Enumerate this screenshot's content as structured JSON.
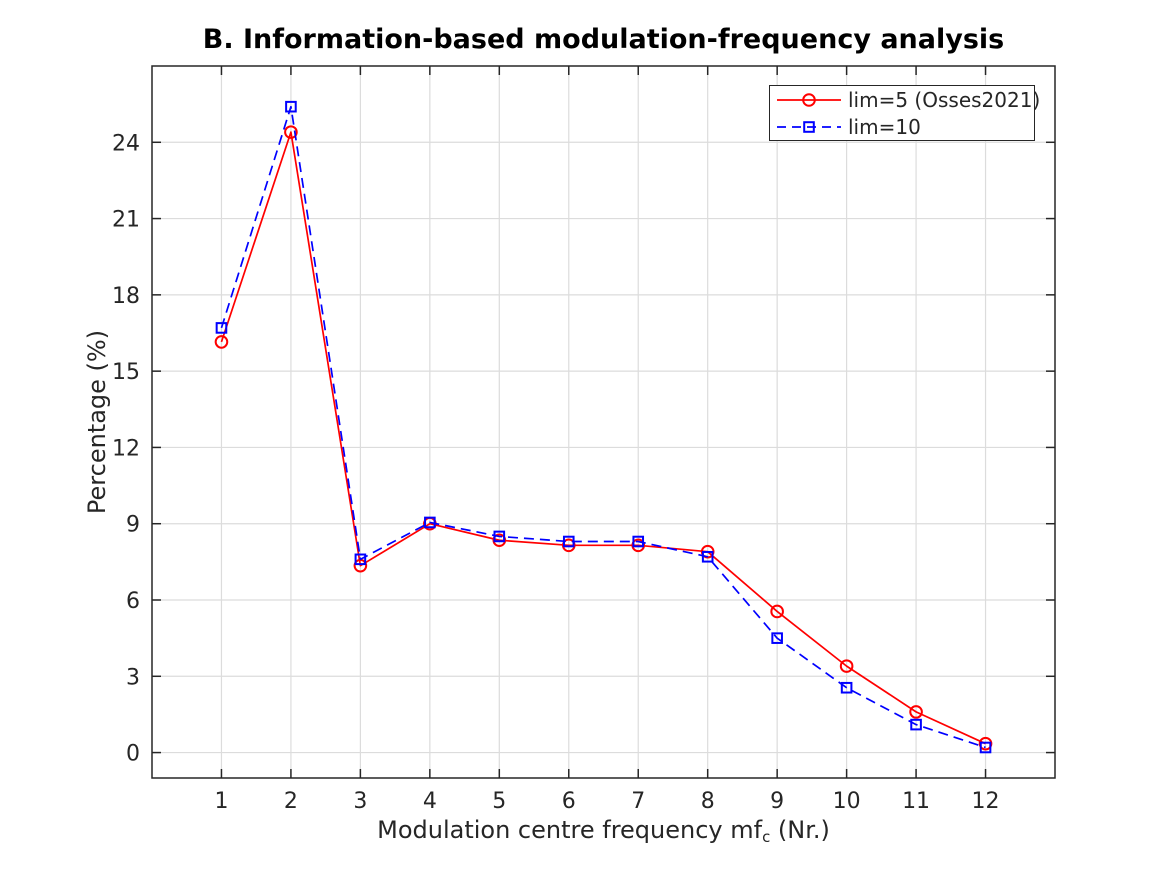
{
  "chart_data": {
    "type": "line",
    "title": "B. Information-based modulation-frequency analysis",
    "ylabel": "Percentage (%)",
    "xlabel": {
      "prefix": "Modulation centre frequency mf",
      "sub": "c",
      "suffix": " (Nr.)"
    },
    "x": [
      1,
      2,
      3,
      4,
      5,
      6,
      7,
      8,
      9,
      10,
      11,
      12
    ],
    "series": [
      {
        "name": "lim=5 (Osses2021)",
        "color": "#ff0000",
        "marker": "circle",
        "linestyle": "solid",
        "values": [
          16.15,
          24.4,
          7.35,
          9.0,
          8.35,
          8.15,
          8.15,
          7.9,
          5.55,
          3.4,
          1.6,
          0.35
        ]
      },
      {
        "name": "lim=10",
        "color": "#0000ff",
        "marker": "square",
        "linestyle": "dashed",
        "values": [
          16.7,
          25.4,
          7.6,
          9.05,
          8.5,
          8.3,
          8.3,
          7.7,
          4.5,
          2.55,
          1.1,
          0.2
        ]
      }
    ],
    "xticks": [
      1,
      2,
      3,
      4,
      5,
      6,
      7,
      8,
      9,
      10,
      11,
      12
    ],
    "yticks": [
      0,
      3,
      6,
      9,
      12,
      15,
      18,
      21,
      24
    ],
    "xlim": [
      0,
      13
    ],
    "ylim": [
      -1,
      27
    ],
    "grid": true,
    "legend_position": "top-right",
    "colors": {
      "axis": "#262626",
      "tick_label": "#262626",
      "grid": "#dcdcdc",
      "background": "#ffffff",
      "title": "#000000"
    }
  }
}
